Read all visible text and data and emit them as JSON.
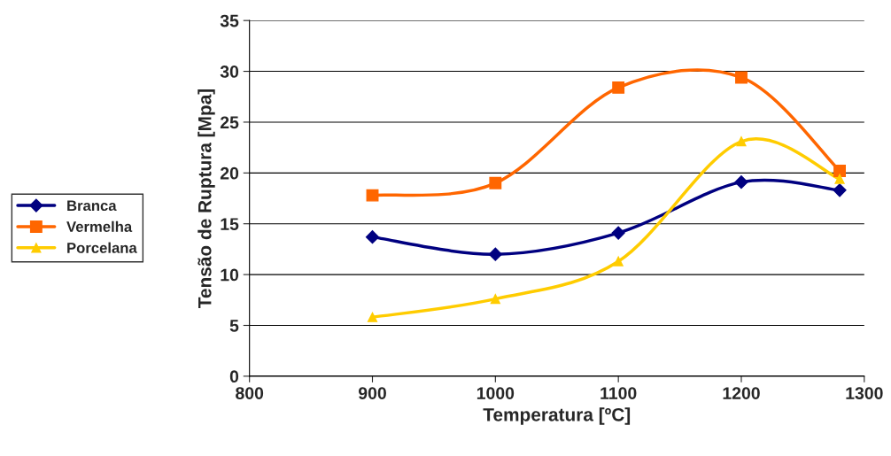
{
  "chart_data": {
    "type": "line",
    "xlabel": "Temperatura [ºC]",
    "ylabel": "Tensão de Ruptura [Mpa]",
    "x": [
      900,
      1000,
      1100,
      1200,
      1280
    ],
    "series": [
      {
        "name": "Branca",
        "color": "#000080",
        "marker": "diamond",
        "values": [
          13.7,
          12.0,
          14.1,
          19.1,
          18.3
        ]
      },
      {
        "name": "Vermelha",
        "color": "#ff6600",
        "marker": "square",
        "values": [
          17.8,
          19.0,
          28.4,
          29.4,
          20.2
        ]
      },
      {
        "name": "Porcelana",
        "color": "#ffcc00",
        "marker": "triangle",
        "values": [
          5.8,
          7.6,
          11.3,
          23.1,
          19.4
        ]
      }
    ],
    "xlim": [
      800,
      1300
    ],
    "xticks": [
      800,
      900,
      1000,
      1100,
      1200,
      1300
    ],
    "ylim": [
      0,
      35
    ],
    "yticks": [
      0,
      5,
      10,
      15,
      20,
      25,
      30,
      35
    ],
    "grid": "y",
    "legend": "left",
    "line_style": "solid"
  }
}
